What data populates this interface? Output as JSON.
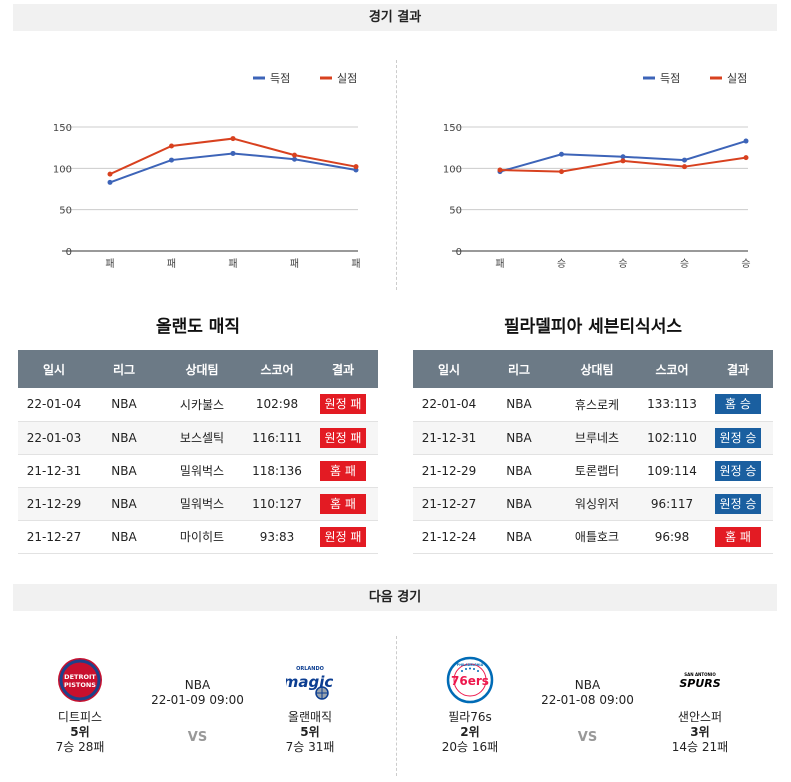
{
  "sections": {
    "results": "경기 결과",
    "next": "다음 경기"
  },
  "legend": {
    "scored": "득점",
    "conceded": "실점"
  },
  "colors": {
    "scored": "#3d64b8",
    "conceded": "#d8411f",
    "header": "#6c7a86",
    "loss": "#e31b23",
    "win": "#1a5fa0"
  },
  "charts": [
    {
      "chart_data": {
        "type": "line",
        "categories": [
          "패",
          "패",
          "패",
          "패",
          "패"
        ],
        "series": [
          {
            "name": "득점",
            "values": [
              83,
              110,
              118,
              111,
              98
            ]
          },
          {
            "name": "실점",
            "values": [
              93,
              127,
              136,
              116,
              102
            ]
          }
        ],
        "ylim": [
          0,
          150
        ],
        "yticks": [
          0,
          50,
          100,
          150
        ],
        "grid": true,
        "legend": "top-right"
      }
    },
    {
      "chart_data": {
        "type": "line",
        "categories": [
          "패",
          "승",
          "승",
          "승",
          "승"
        ],
        "series": [
          {
            "name": "득점",
            "values": [
              96,
              117,
              114,
              110,
              133
            ]
          },
          {
            "name": "실점",
            "values": [
              98,
              96,
              109,
              102,
              113
            ]
          }
        ],
        "ylim": [
          0,
          150
        ],
        "yticks": [
          0,
          50,
          100,
          150
        ],
        "grid": true,
        "legend": "top-right"
      }
    }
  ],
  "table_headers": [
    "일시",
    "리그",
    "상대팀",
    "스코어",
    "결과"
  ],
  "teams": [
    {
      "title": "올랜도 매직",
      "games": [
        {
          "date": "22-01-04",
          "league": "NBA",
          "opponent": "시카불스",
          "score": "102:98",
          "result": "원정 패",
          "type": "loss"
        },
        {
          "date": "22-01-03",
          "league": "NBA",
          "opponent": "보스셀틱",
          "score": "116:111",
          "result": "원정 패",
          "type": "loss"
        },
        {
          "date": "21-12-31",
          "league": "NBA",
          "opponent": "밀워벅스",
          "score": "118:136",
          "result": "홈 패",
          "type": "loss"
        },
        {
          "date": "21-12-29",
          "league": "NBA",
          "opponent": "밀워벅스",
          "score": "110:127",
          "result": "홈 패",
          "type": "loss"
        },
        {
          "date": "21-12-27",
          "league": "NBA",
          "opponent": "마이히트",
          "score": "93:83",
          "result": "원정 패",
          "type": "loss"
        }
      ]
    },
    {
      "title": "필라델피아 세븐티식서스",
      "games": [
        {
          "date": "22-01-04",
          "league": "NBA",
          "opponent": "휴스로케",
          "score": "133:113",
          "result": "홈 승",
          "type": "win"
        },
        {
          "date": "21-12-31",
          "league": "NBA",
          "opponent": "브루네츠",
          "score": "102:110",
          "result": "원정 승",
          "type": "win"
        },
        {
          "date": "21-12-29",
          "league": "NBA",
          "opponent": "토론랩터",
          "score": "109:114",
          "result": "원정 승",
          "type": "win"
        },
        {
          "date": "21-12-27",
          "league": "NBA",
          "opponent": "워싱위저",
          "score": "96:117",
          "result": "원정 승",
          "type": "win"
        },
        {
          "date": "21-12-24",
          "league": "NBA",
          "opponent": "애틀호크",
          "score": "96:98",
          "result": "홈 패",
          "type": "loss"
        }
      ]
    }
  ],
  "next_games": [
    {
      "league": "NBA",
      "time": "22-01-09 09:00",
      "vs": "VS",
      "home": {
        "name": "디트피스",
        "rank": "5위",
        "record": "7승 28패",
        "logo": "pistons-logo",
        "logo_text": [
          "DETROIT",
          "PISTONS"
        ]
      },
      "away": {
        "name": "올랜매직",
        "rank": "5위",
        "record": "7승 31패",
        "logo": "magic-logo",
        "logo_text": [
          "ORLANDO",
          "magic"
        ]
      }
    },
    {
      "league": "NBA",
      "time": "22-01-08 09:00",
      "vs": "VS",
      "home": {
        "name": "필라76s",
        "rank": "2위",
        "record": "20승 16패",
        "logo": "76ers-logo",
        "logo_text": [
          "PHILADELPHIA",
          "76ers"
        ]
      },
      "away": {
        "name": "샌안스퍼",
        "rank": "3위",
        "record": "14승 21패",
        "logo": "spurs-logo",
        "logo_text": [
          "SAN ANTONIO",
          "SPURS"
        ]
      }
    }
  ]
}
